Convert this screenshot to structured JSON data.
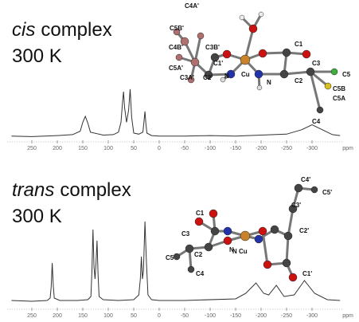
{
  "chart_data": [
    {
      "type": "line",
      "title_italic": "cis",
      "title": "complex",
      "subtitle": "300 K",
      "xlabel": "ppm",
      "xlim": [
        298,
        -360
      ],
      "ylim": [
        0,
        100
      ],
      "xticks": [
        250,
        200,
        150,
        100,
        50,
        0,
        -50,
        -100,
        -150,
        -200,
        -250,
        -300
      ],
      "x": [
        290,
        250,
        200,
        170,
        155,
        150,
        145,
        140,
        135,
        110,
        90,
        80,
        75,
        72,
        70,
        68,
        64,
        60,
        57,
        54,
        50,
        40,
        32,
        30,
        28,
        26,
        24,
        15,
        0,
        -50,
        -100,
        -150,
        -200,
        -250,
        -280,
        -300,
        -320,
        -340,
        -355
      ],
      "series": [
        {
          "name": "cis",
          "color": "#333333",
          "values": [
            2,
            1,
            3,
            5,
            12,
            30,
            42,
            28,
            10,
            4,
            5,
            10,
            30,
            70,
            92,
            60,
            30,
            55,
            97,
            40,
            8,
            6,
            10,
            30,
            52,
            25,
            8,
            3,
            2,
            2,
            3,
            2,
            4,
            6,
            15,
            25,
            15,
            5,
            3
          ]
        }
      ],
      "annotations": [
        "C4A'",
        "C5B'",
        "C4B'",
        "C3B'",
        "C5A'",
        "C3A'",
        "C1'",
        "C2'",
        "Cu",
        "C1",
        "C2",
        "C3",
        "C5",
        "C5B",
        "C5A",
        "C4",
        "N",
        "N"
      ]
    },
    {
      "type": "line",
      "title_italic": "trans",
      "title": "complex",
      "subtitle": "300 K",
      "xlabel": "ppm",
      "xlim": [
        298,
        -360
      ],
      "ylim": [
        0,
        110
      ],
      "xticks": [
        250,
        200,
        150,
        100,
        50,
        0,
        -50,
        -100,
        -150,
        -200,
        -250,
        -300
      ],
      "x": [
        290,
        250,
        220,
        214,
        212,
        210,
        208,
        206,
        195,
        160,
        140,
        134,
        132,
        130,
        128,
        126,
        124,
        122,
        120,
        118,
        110,
        80,
        50,
        40,
        37,
        35,
        33,
        31,
        28,
        25,
        22,
        15,
        0,
        -50,
        -150,
        -170,
        -190,
        -205,
        -215,
        -230,
        -245,
        -265,
        -285,
        -305,
        -330,
        -355
      ],
      "series": [
        {
          "name": "trans",
          "color": "#333333",
          "values": [
            3,
            2,
            3,
            6,
            20,
            50,
            22,
            6,
            3,
            3,
            4,
            8,
            40,
            92,
            45,
            30,
            50,
            78,
            35,
            8,
            4,
            3,
            4,
            10,
            30,
            58,
            30,
            40,
            102,
            50,
            10,
            4,
            3,
            3,
            5,
            12,
            25,
            12,
            10,
            22,
            8,
            10,
            28,
            12,
            4,
            3
          ]
        }
      ],
      "annotations": [
        "C4'",
        "C5'",
        "C3'",
        "C2'",
        "C1'",
        "C1",
        "C3",
        "C2",
        "C5",
        "C4",
        "N",
        "N",
        "Cu"
      ]
    }
  ]
}
